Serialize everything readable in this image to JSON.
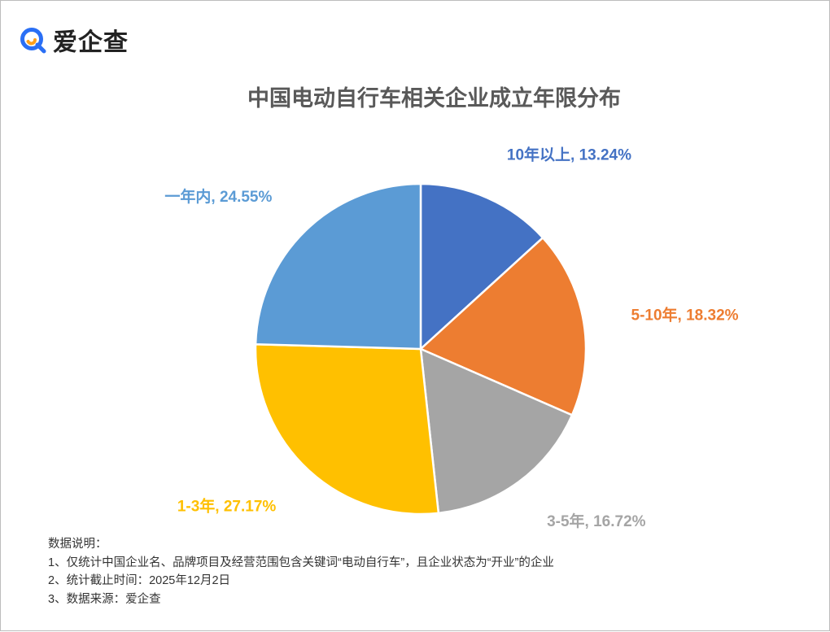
{
  "brand": {
    "name": "爱企查",
    "icon": "aiqicha-logo-icon",
    "colors": {
      "ring": "#2a6ff5",
      "accent": "#ff9f1a"
    }
  },
  "chart_data": {
    "type": "pie",
    "title": "中国电动自行车相关企业成立年限分布",
    "start_angle_deg": 0,
    "direction": "clockwise",
    "slices": [
      {
        "label": "10年以上",
        "value": 13.24,
        "value_label": "13.24%",
        "color": "#4472c4"
      },
      {
        "label": "5-10年",
        "value": 18.32,
        "value_label": "18.32%",
        "color": "#ed7d31"
      },
      {
        "label": "3-5年",
        "value": 16.72,
        "value_label": "16.72%",
        "color": "#a5a5a5"
      },
      {
        "label": "1-3年",
        "value": 27.17,
        "value_label": "27.17%",
        "color": "#ffc000"
      },
      {
        "label": "一年内",
        "value": 24.55,
        "value_label": "24.55%",
        "color": "#5b9bd5"
      }
    ],
    "legend": "none",
    "data_labels": "outside, colored by slice"
  },
  "notes": {
    "heading": "数据说明：",
    "lines": [
      "1、仅统计中国企业名、品牌项目及经营范围包含关键词“电动自行车”，且企业状态为“开业”的企业",
      "2、统计截止时间：2025年12月2日",
      "3、数据来源：爱企查"
    ]
  }
}
